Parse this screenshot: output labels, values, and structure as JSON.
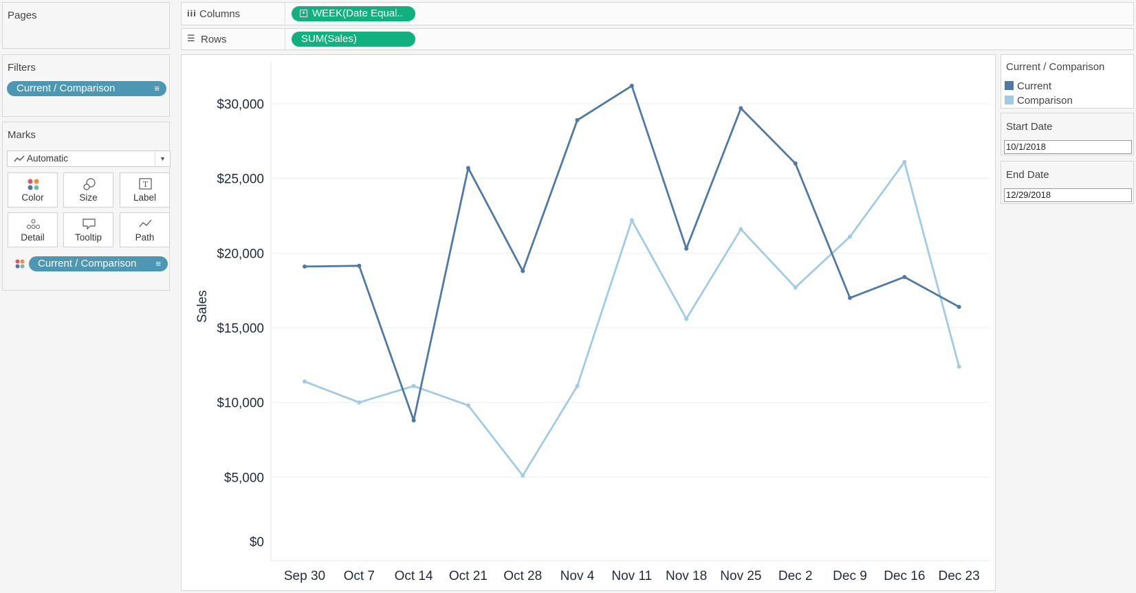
{
  "pages": {
    "title": "Pages"
  },
  "columns_shelf": {
    "label": "Columns",
    "pill": "WEEK(Date Equal.."
  },
  "rows_shelf": {
    "label": "Rows",
    "pill": "SUM(Sales)"
  },
  "filters": {
    "title": "Filters",
    "pill": "Current / Comparison"
  },
  "marks": {
    "title": "Marks",
    "type_selected": "Automatic",
    "cards": [
      {
        "label": "Color",
        "icon": "color-icon"
      },
      {
        "label": "Size",
        "icon": "size-icon"
      },
      {
        "label": "Label",
        "icon": "label-icon"
      },
      {
        "label": "Detail",
        "icon": "detail-icon"
      },
      {
        "label": "Tooltip",
        "icon": "tooltip-icon"
      },
      {
        "label": "Path",
        "icon": "path-icon"
      }
    ],
    "color_pill": "Current / Comparison"
  },
  "legend": {
    "title": "Current / Comparison",
    "items": [
      {
        "label": "Current",
        "color": "#4e79a7"
      },
      {
        "label": "Comparison",
        "color": "#a0cbe8"
      }
    ]
  },
  "start_date": {
    "title": "Start Date",
    "value": "10/1/2018"
  },
  "end_date": {
    "title": "End Date",
    "value": "12/29/2018"
  },
  "chart_data": {
    "type": "line",
    "xlabel": "",
    "ylabel": "Sales",
    "ylim": [
      0,
      32500
    ],
    "yticks": [
      {
        "value": 0,
        "label": "$0"
      },
      {
        "value": 5000,
        "label": "$5,000"
      },
      {
        "value": 10000,
        "label": "$10,000"
      },
      {
        "value": 15000,
        "label": "$15,000"
      },
      {
        "value": 20000,
        "label": "$20,000"
      },
      {
        "value": 25000,
        "label": "$25,000"
      },
      {
        "value": 30000,
        "label": "$30,000"
      }
    ],
    "categories": [
      "Sep 30",
      "Oct 7",
      "Oct 14",
      "Oct 21",
      "Oct 28",
      "Nov 4",
      "Nov 11",
      "Nov 18",
      "Nov 25",
      "Dec 2",
      "Dec 9",
      "Dec 16",
      "Dec 23"
    ],
    "grid": true,
    "series": [
      {
        "name": "Current",
        "color": "#4e79a7",
        "values": [
          19100,
          19150,
          8800,
          25700,
          18800,
          28900,
          31200,
          20300,
          29700,
          26000,
          17000,
          18400,
          16400
        ]
      },
      {
        "name": "Comparison",
        "color": "#a0cbe8",
        "values": [
          11400,
          10000,
          11100,
          9800,
          5100,
          11100,
          22200,
          15600,
          21600,
          17700,
          21100,
          26100,
          12400
        ]
      }
    ]
  }
}
